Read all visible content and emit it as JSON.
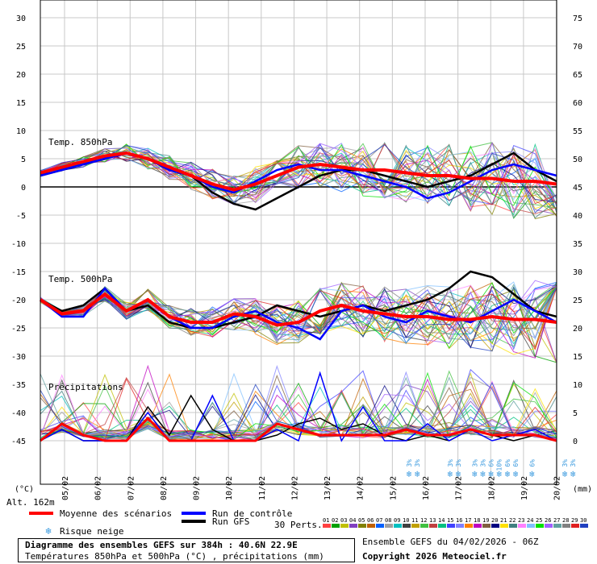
{
  "chart_data": {
    "type": "line",
    "x_dates": [
      "05/02",
      "06/02",
      "07/02",
      "08/02",
      "09/02",
      "10/02",
      "11/02",
      "12/02",
      "13/02",
      "14/02",
      "15/02",
      "16/02",
      "17/02",
      "18/02",
      "19/02",
      "20/02"
    ],
    "y_left_ticks": [
      30,
      25,
      20,
      15,
      10,
      5,
      0,
      -5,
      -10,
      -15,
      -20,
      -25,
      -30,
      -35,
      -40,
      -45
    ],
    "y_right_ticks": [
      75,
      70,
      65,
      60,
      55,
      50,
      45,
      40,
      35,
      30,
      25,
      20,
      15,
      10,
      5,
      0
    ],
    "ylim_left": [
      -45,
      30
    ],
    "ylim_right": [
      0,
      75
    ],
    "unit_left": "(°C)",
    "unit_right": "(mm)",
    "altitude": "Alt. 162m",
    "panel_labels": {
      "t850": "Temp. 850hPa",
      "t500": "Temp. 500hPa",
      "precip": "Précipitations"
    },
    "series": [
      {
        "name": "Moyenne des scénarios",
        "t850": [
          2.5,
          3.5,
          4.5,
          5.5,
          6,
          5,
          3.5,
          2,
          0.5,
          -0.5,
          0.5,
          2,
          3.5,
          4,
          3.5,
          3,
          3,
          2.5,
          2,
          2,
          1.5,
          1.5,
          1,
          1,
          0.5
        ],
        "t500": [
          -20,
          -22.5,
          -22,
          -19,
          -22,
          -20,
          -23,
          -24,
          -24,
          -22.5,
          -23,
          -24.5,
          -24,
          -22,
          -21,
          -22,
          -22.5,
          -23,
          -23,
          -23.5,
          -23.5,
          -23,
          -23.5,
          -23.5,
          -24
        ],
        "precip": [
          0,
          3,
          1,
          0,
          0,
          4,
          0,
          0,
          0,
          0,
          0,
          3,
          2,
          1,
          1,
          1,
          1,
          2,
          1,
          1,
          2,
          1,
          1,
          1,
          0
        ]
      },
      {
        "name": "Run de contrôle",
        "t850": [
          2,
          3,
          4,
          5,
          6,
          5,
          3,
          2,
          0,
          -1,
          1,
          3,
          4,
          3,
          3,
          2,
          1,
          0,
          -2,
          -1,
          1,
          3,
          4,
          3,
          2
        ],
        "t500": [
          -20,
          -23,
          -23,
          -18,
          -22,
          -20,
          -23,
          -25,
          -25,
          -23,
          -22,
          -24,
          -25,
          -27,
          -22,
          -21,
          -23,
          -24,
          -22,
          -23,
          -24,
          -22,
          -20,
          -22,
          -24
        ],
        "precip": [
          0,
          2,
          0,
          0,
          0,
          5,
          0,
          0,
          8,
          0,
          0,
          2,
          0,
          12,
          0,
          6,
          0,
          0,
          3,
          0,
          2,
          0,
          1,
          2,
          0
        ]
      },
      {
        "name": "Run GFS",
        "t850": [
          2,
          3,
          4,
          5,
          6,
          5,
          3,
          2,
          -1,
          -3,
          -4,
          -2,
          0,
          2,
          3,
          3,
          2,
          1,
          0,
          1,
          2,
          4,
          6,
          3,
          1
        ],
        "t500": [
          -20,
          -22,
          -21,
          -18,
          -22,
          -21,
          -24,
          -25,
          -25,
          -24,
          -23,
          -21,
          -22,
          -23,
          -22,
          -21,
          -22,
          -21,
          -20,
          -18,
          -15,
          -16,
          -19,
          -22,
          -23
        ],
        "precip": [
          0,
          2,
          0,
          0,
          0,
          6,
          1,
          8,
          2,
          0,
          0,
          1,
          3,
          4,
          2,
          3,
          1,
          0,
          1,
          0,
          2,
          1,
          0,
          1,
          0
        ]
      }
    ],
    "snow_risk": [
      {
        "date_index": 11,
        "text": "3%"
      },
      {
        "date_index": 11.25,
        "text": "3%"
      },
      {
        "date_index": 12.25,
        "text": "3%"
      },
      {
        "date_index": 12.5,
        "text": "3%"
      },
      {
        "date_index": 13,
        "text": "3%"
      },
      {
        "date_index": 13.25,
        "text": "3%"
      },
      {
        "date_index": 13.5,
        "text": "6%"
      },
      {
        "date_index": 13.75,
        "text": "10%"
      },
      {
        "date_index": 14,
        "text": "6%"
      },
      {
        "date_index": 14.25,
        "text": "6%"
      },
      {
        "date_index": 14.75,
        "text": "6%"
      },
      {
        "date_index": 15.75,
        "text": "3%"
      },
      {
        "date_index": 16,
        "text": "3%"
      }
    ],
    "perturbations": {
      "label": "30 Perts.",
      "ids": [
        "01",
        "02",
        "03",
        "04",
        "05",
        "06",
        "07",
        "08",
        "09",
        "10",
        "11",
        "12",
        "13",
        "14",
        "15",
        "16",
        "17",
        "18",
        "19",
        "20",
        "21",
        "22",
        "23",
        "24",
        "25",
        "26",
        "27",
        "28",
        "29",
        "30"
      ],
      "colors": [
        "#ff4040",
        "#00a000",
        "#c0c000",
        "#8040c0",
        "#808000",
        "#c06000",
        "#0060ff",
        "#a0a0a0",
        "#00c0c0",
        "#404040",
        "#c0a000",
        "#40c040",
        "#c04040",
        "#00c080",
        "#4040ff",
        "#8080ff",
        "#ff8000",
        "#c000c0",
        "#806040",
        "#000080",
        "#ffe000",
        "#408080",
        "#ff80ff",
        "#80c0ff",
        "#00e000",
        "#a060ff",
        "#60a0a0",
        "#808080",
        "#e02020",
        "#2040c0"
      ]
    },
    "colors": {
      "mean": "#ff0000",
      "control": "#0000ff",
      "gfs": "#000000",
      "grid": "#c8c8c8"
    }
  },
  "legend": {
    "mean": "Moyenne des scénarios",
    "control": "Run de contrôle",
    "gfs": "Run GFS",
    "snow": "Risque neige",
    "title": "Diagramme des ensembles GEFS sur 384h : 40.6N 22.9E",
    "subtitle": "Températures 850hPa et 500hPa (°C) , précipitations (mm)",
    "ensemble": "Ensemble GEFS du 04/02/2026 - 06Z",
    "copyright": "Copyright 2026 Meteociel.fr"
  }
}
